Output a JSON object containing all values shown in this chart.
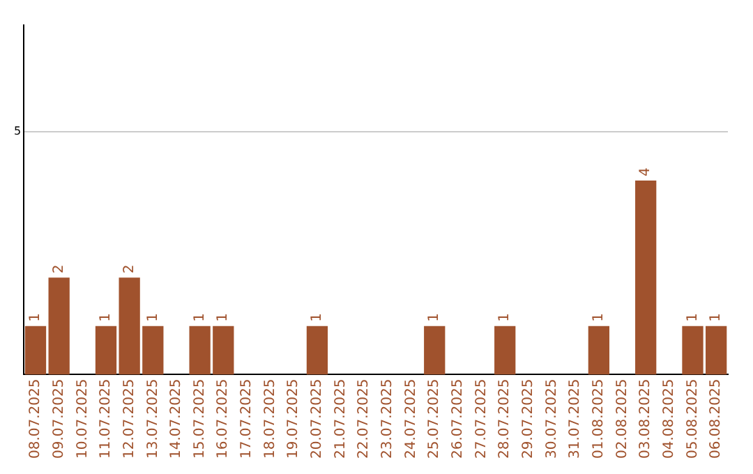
{
  "chart_data": {
    "type": "bar",
    "categories": [
      "08.07.2025",
      "09.07.2025",
      "10.07.2025",
      "11.07.2025",
      "12.07.2025",
      "13.07.2025",
      "14.07.2025",
      "15.07.2025",
      "16.07.2025",
      "17.07.2025",
      "18.07.2025",
      "19.07.2025",
      "20.07.2025",
      "21.07.2025",
      "22.07.2025",
      "23.07.2025",
      "24.07.2025",
      "25.07.2025",
      "26.07.2025",
      "27.07.2025",
      "28.07.2025",
      "29.07.2025",
      "30.07.2025",
      "31.07.2025",
      "01.08.2025",
      "02.08.2025",
      "03.08.2025",
      "04.08.2025",
      "05.08.2025",
      "06.08.2025"
    ],
    "values": [
      1,
      2,
      0,
      1,
      2,
      1,
      0,
      1,
      1,
      0,
      0,
      0,
      1,
      0,
      0,
      0,
      0,
      1,
      0,
      0,
      1,
      0,
      0,
      0,
      1,
      0,
      4,
      0,
      1,
      1
    ],
    "value_labels": [
      "1",
      "2",
      null,
      "1",
      "2",
      "1",
      null,
      "1",
      "1",
      null,
      null,
      null,
      "1",
      null,
      null,
      null,
      null,
      "1",
      null,
      null,
      "1",
      null,
      null,
      null,
      "1",
      null,
      "4",
      null,
      "1",
      "1"
    ],
    "color": "#a0522d",
    "ylim": [
      0,
      7.2
    ],
    "yticks": [
      5
    ],
    "grid": "y",
    "legend": false
  }
}
